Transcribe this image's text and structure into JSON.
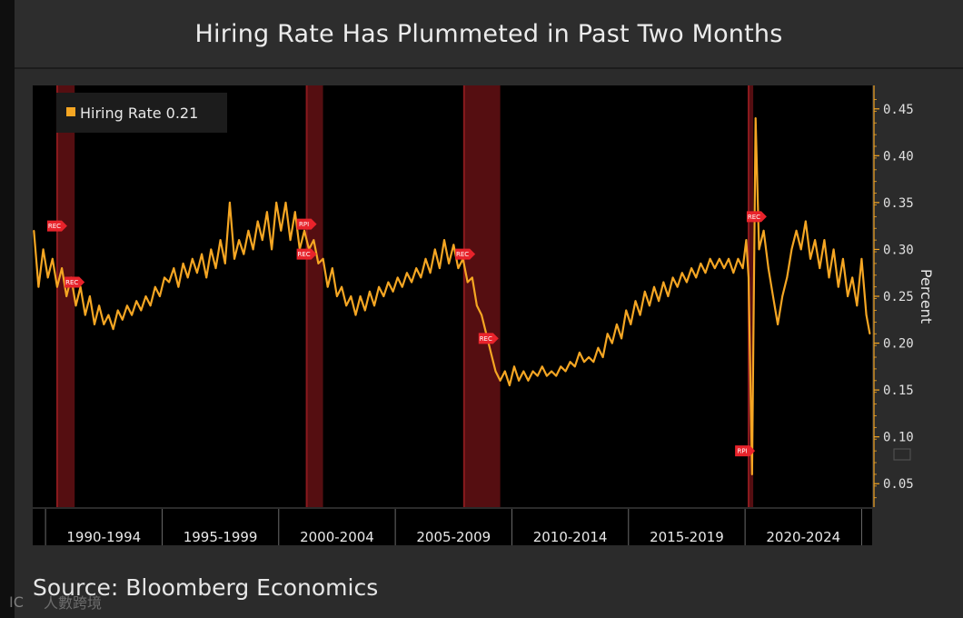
{
  "title": "Hiring Rate Has Plummeted in Past Two Months",
  "source": "Source: Bloomberg Economics",
  "watermark": "人數跨境",
  "chart_data": {
    "type": "line",
    "title": "Hiring Rate Has Plummeted in Past Two Months",
    "ylabel": "Percent",
    "xlabel": "",
    "ylim": [
      0.025,
      0.475
    ],
    "xlim": [
      1989.45,
      2025.45
    ],
    "y_ticks": [
      0.05,
      0.1,
      0.15,
      0.2,
      0.25,
      0.3,
      0.35,
      0.4,
      0.45
    ],
    "y_tick_labels": [
      "0.05",
      "0.10",
      "0.15",
      "0.20",
      "0.25",
      "0.30",
      "0.35",
      "0.40",
      "0.45"
    ],
    "x_period_labels": [
      "1990-1994",
      "1995-1999",
      "2000-2004",
      "2005-2009",
      "2010-2014",
      "2015-2019",
      "2020-2024"
    ],
    "grid": false,
    "legend": {
      "placement": "top-left",
      "entries": [
        {
          "name": "Hiring Rate 0.21",
          "color": "#f5a623"
        }
      ]
    },
    "recessions": [
      {
        "start": 1990.5,
        "end": 1991.25
      },
      {
        "start": 2001.2,
        "end": 2001.9
      },
      {
        "start": 2007.95,
        "end": 2009.5
      },
      {
        "start": 2020.15,
        "end": 2020.35
      }
    ],
    "annotations": [
      {
        "text": "REC",
        "x": 1990.5,
        "y": 0.325
      },
      {
        "text": "REC",
        "x": 1991.25,
        "y": 0.265
      },
      {
        "text": "RPI",
        "x": 2001.2,
        "y": 0.327
      },
      {
        "text": "REC",
        "x": 2001.2,
        "y": 0.295
      },
      {
        "text": "REC",
        "x": 2008.0,
        "y": 0.295
      },
      {
        "text": "REC",
        "x": 2009.0,
        "y": 0.205
      },
      {
        "text": "REC",
        "x": 2020.5,
        "y": 0.335
      },
      {
        "text": "RPI",
        "x": 2020.0,
        "y": 0.085
      }
    ],
    "series": [
      {
        "name": "Hiring Rate",
        "color": "#f5a623",
        "points": [
          [
            1989.5,
            0.32
          ],
          [
            1989.7,
            0.26
          ],
          [
            1989.9,
            0.3
          ],
          [
            1990.1,
            0.27
          ],
          [
            1990.3,
            0.29
          ],
          [
            1990.5,
            0.26
          ],
          [
            1990.7,
            0.28
          ],
          [
            1990.9,
            0.25
          ],
          [
            1991.1,
            0.27
          ],
          [
            1991.3,
            0.24
          ],
          [
            1991.5,
            0.26
          ],
          [
            1991.7,
            0.23
          ],
          [
            1991.9,
            0.25
          ],
          [
            1992.1,
            0.22
          ],
          [
            1992.3,
            0.24
          ],
          [
            1992.5,
            0.22
          ],
          [
            1992.7,
            0.23
          ],
          [
            1992.9,
            0.215
          ],
          [
            1993.1,
            0.235
          ],
          [
            1993.3,
            0.225
          ],
          [
            1993.5,
            0.24
          ],
          [
            1993.7,
            0.23
          ],
          [
            1993.9,
            0.245
          ],
          [
            1994.1,
            0.235
          ],
          [
            1994.3,
            0.25
          ],
          [
            1994.5,
            0.24
          ],
          [
            1994.7,
            0.26
          ],
          [
            1994.9,
            0.25
          ],
          [
            1995.1,
            0.27
          ],
          [
            1995.3,
            0.265
          ],
          [
            1995.5,
            0.28
          ],
          [
            1995.7,
            0.26
          ],
          [
            1995.9,
            0.285
          ],
          [
            1996.1,
            0.27
          ],
          [
            1996.3,
            0.29
          ],
          [
            1996.5,
            0.275
          ],
          [
            1996.7,
            0.295
          ],
          [
            1996.9,
            0.27
          ],
          [
            1997.1,
            0.3
          ],
          [
            1997.3,
            0.28
          ],
          [
            1997.5,
            0.31
          ],
          [
            1997.7,
            0.285
          ],
          [
            1997.9,
            0.35
          ],
          [
            1998.1,
            0.29
          ],
          [
            1998.3,
            0.31
          ],
          [
            1998.5,
            0.295
          ],
          [
            1998.7,
            0.32
          ],
          [
            1998.9,
            0.3
          ],
          [
            1999.1,
            0.33
          ],
          [
            1999.3,
            0.31
          ],
          [
            1999.5,
            0.34
          ],
          [
            1999.7,
            0.3
          ],
          [
            1999.9,
            0.35
          ],
          [
            2000.1,
            0.32
          ],
          [
            2000.3,
            0.35
          ],
          [
            2000.5,
            0.31
          ],
          [
            2000.7,
            0.34
          ],
          [
            2000.9,
            0.3
          ],
          [
            2001.1,
            0.32
          ],
          [
            2001.3,
            0.3
          ],
          [
            2001.5,
            0.31
          ],
          [
            2001.7,
            0.285
          ],
          [
            2001.9,
            0.29
          ],
          [
            2002.1,
            0.26
          ],
          [
            2002.3,
            0.28
          ],
          [
            2002.5,
            0.25
          ],
          [
            2002.7,
            0.26
          ],
          [
            2002.9,
            0.24
          ],
          [
            2003.1,
            0.25
          ],
          [
            2003.3,
            0.23
          ],
          [
            2003.5,
            0.25
          ],
          [
            2003.7,
            0.235
          ],
          [
            2003.9,
            0.255
          ],
          [
            2004.1,
            0.24
          ],
          [
            2004.3,
            0.26
          ],
          [
            2004.5,
            0.25
          ],
          [
            2004.7,
            0.265
          ],
          [
            2004.9,
            0.255
          ],
          [
            2005.1,
            0.27
          ],
          [
            2005.3,
            0.26
          ],
          [
            2005.5,
            0.275
          ],
          [
            2005.7,
            0.265
          ],
          [
            2005.9,
            0.28
          ],
          [
            2006.1,
            0.27
          ],
          [
            2006.3,
            0.29
          ],
          [
            2006.5,
            0.275
          ],
          [
            2006.7,
            0.3
          ],
          [
            2006.9,
            0.28
          ],
          [
            2007.1,
            0.31
          ],
          [
            2007.3,
            0.285
          ],
          [
            2007.5,
            0.305
          ],
          [
            2007.7,
            0.28
          ],
          [
            2007.9,
            0.29
          ],
          [
            2008.1,
            0.265
          ],
          [
            2008.3,
            0.27
          ],
          [
            2008.5,
            0.24
          ],
          [
            2008.7,
            0.23
          ],
          [
            2008.9,
            0.21
          ],
          [
            2009.1,
            0.19
          ],
          [
            2009.3,
            0.17
          ],
          [
            2009.5,
            0.16
          ],
          [
            2009.7,
            0.17
          ],
          [
            2009.9,
            0.155
          ],
          [
            2010.1,
            0.175
          ],
          [
            2010.3,
            0.16
          ],
          [
            2010.5,
            0.17
          ],
          [
            2010.7,
            0.16
          ],
          [
            2010.9,
            0.17
          ],
          [
            2011.1,
            0.165
          ],
          [
            2011.3,
            0.175
          ],
          [
            2011.5,
            0.165
          ],
          [
            2011.7,
            0.17
          ],
          [
            2011.9,
            0.165
          ],
          [
            2012.1,
            0.175
          ],
          [
            2012.3,
            0.17
          ],
          [
            2012.5,
            0.18
          ],
          [
            2012.7,
            0.175
          ],
          [
            2012.9,
            0.19
          ],
          [
            2013.1,
            0.18
          ],
          [
            2013.3,
            0.185
          ],
          [
            2013.5,
            0.18
          ],
          [
            2013.7,
            0.195
          ],
          [
            2013.9,
            0.185
          ],
          [
            2014.1,
            0.21
          ],
          [
            2014.3,
            0.2
          ],
          [
            2014.5,
            0.22
          ],
          [
            2014.7,
            0.205
          ],
          [
            2014.9,
            0.235
          ],
          [
            2015.1,
            0.22
          ],
          [
            2015.3,
            0.245
          ],
          [
            2015.5,
            0.23
          ],
          [
            2015.7,
            0.255
          ],
          [
            2015.9,
            0.24
          ],
          [
            2016.1,
            0.26
          ],
          [
            2016.3,
            0.245
          ],
          [
            2016.5,
            0.265
          ],
          [
            2016.7,
            0.25
          ],
          [
            2016.9,
            0.27
          ],
          [
            2017.1,
            0.26
          ],
          [
            2017.3,
            0.275
          ],
          [
            2017.5,
            0.265
          ],
          [
            2017.7,
            0.28
          ],
          [
            2017.9,
            0.27
          ],
          [
            2018.1,
            0.285
          ],
          [
            2018.3,
            0.275
          ],
          [
            2018.5,
            0.29
          ],
          [
            2018.7,
            0.28
          ],
          [
            2018.9,
            0.29
          ],
          [
            2019.1,
            0.28
          ],
          [
            2019.3,
            0.29
          ],
          [
            2019.5,
            0.275
          ],
          [
            2019.7,
            0.29
          ],
          [
            2019.9,
            0.28
          ],
          [
            2020.05,
            0.31
          ],
          [
            2020.15,
            0.27
          ],
          [
            2020.3,
            0.06
          ],
          [
            2020.45,
            0.44
          ],
          [
            2020.6,
            0.3
          ],
          [
            2020.8,
            0.32
          ],
          [
            2021.0,
            0.28
          ],
          [
            2021.2,
            0.25
          ],
          [
            2021.4,
            0.22
          ],
          [
            2021.6,
            0.25
          ],
          [
            2021.8,
            0.27
          ],
          [
            2022.0,
            0.3
          ],
          [
            2022.2,
            0.32
          ],
          [
            2022.4,
            0.3
          ],
          [
            2022.6,
            0.33
          ],
          [
            2022.8,
            0.29
          ],
          [
            2023.0,
            0.31
          ],
          [
            2023.2,
            0.28
          ],
          [
            2023.4,
            0.31
          ],
          [
            2023.6,
            0.27
          ],
          [
            2023.8,
            0.3
          ],
          [
            2024.0,
            0.26
          ],
          [
            2024.2,
            0.29
          ],
          [
            2024.4,
            0.25
          ],
          [
            2024.6,
            0.27
          ],
          [
            2024.8,
            0.24
          ],
          [
            2025.0,
            0.29
          ],
          [
            2025.2,
            0.23
          ],
          [
            2025.35,
            0.21
          ]
        ]
      }
    ]
  }
}
